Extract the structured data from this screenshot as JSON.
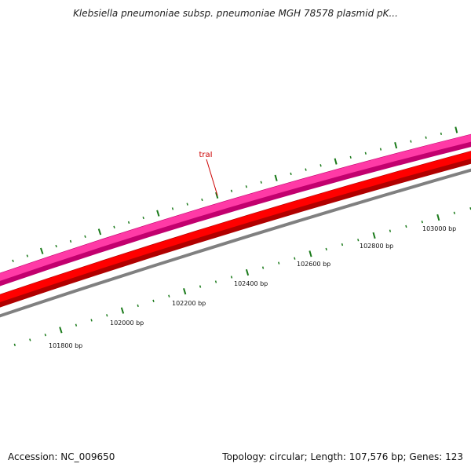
{
  "title": "Klebsiella pneumoniae subsp. pneumoniae MGH 78578 plasmid pK...",
  "gene_label": "traI",
  "position_labels": [
    "101800 bp",
    "102000 bp",
    "102200 bp",
    "102400 bp",
    "102600 bp",
    "102800 bp",
    "103000 bp"
  ],
  "footer": {
    "accession": "Accession: NC_009650",
    "summary": "Topology: circular; Length: 107,576 bp; Genes: 123"
  },
  "colors": {
    "forward_track": "#ff3aa6",
    "forward_track_edge": "#c2006e",
    "reverse_track": "#ff0000",
    "reverse_track_edge": "#b00000",
    "backbone": "#808080",
    "gc_ticks": "#1a7a1a",
    "gene_label": "#cc0000"
  }
}
